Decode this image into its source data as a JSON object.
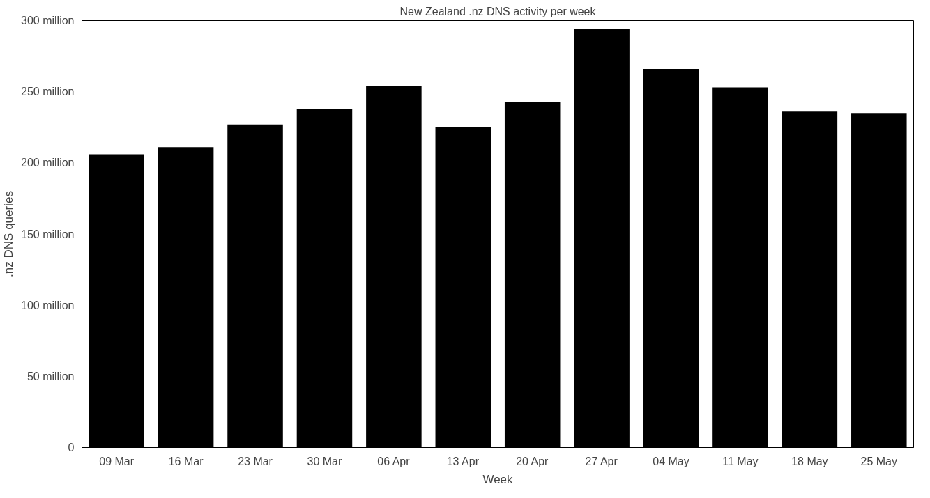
{
  "chart_data": {
    "type": "bar",
    "title": "New Zealand .nz DNS activity per week",
    "xlabel": "Week",
    "ylabel": ".nz DNS queries",
    "categories": [
      "09 Mar",
      "16 Mar",
      "23 Mar",
      "30 Mar",
      "06 Apr",
      "13 Apr",
      "20 Apr",
      "27 Apr",
      "04 May",
      "11 May",
      "18 May",
      "25 May"
    ],
    "values": [
      206000000,
      211000000,
      227000000,
      238000000,
      254000000,
      225000000,
      243000000,
      294000000,
      266000000,
      253000000,
      236000000,
      235000000
    ],
    "color": "#000000",
    "ylim": [
      0,
      300000000
    ],
    "yticks": [
      0,
      {
        "value": 50000000,
        "label": "50 million"
      },
      {
        "value": 100000000,
        "label": "100 million"
      },
      {
        "value": 150000000,
        "label": "150 million"
      },
      {
        "value": 200000000,
        "label": "200 million"
      },
      {
        "value": 250000000,
        "label": "250 million"
      },
      {
        "value": 300000000,
        "label": "300 million"
      }
    ],
    "grid": false
  }
}
